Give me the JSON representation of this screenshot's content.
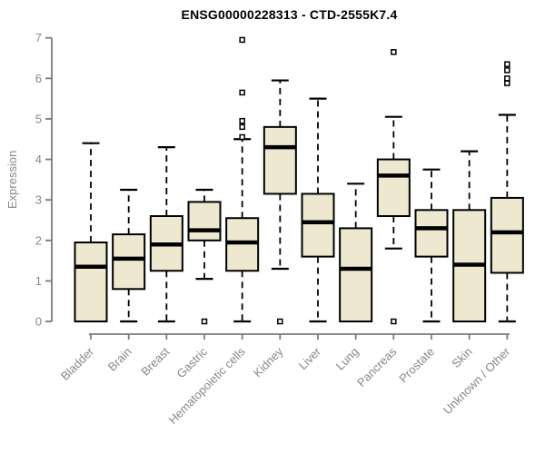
{
  "chart_data": {
    "type": "boxplot",
    "title": "ENSG00000228313 - CTD-2555K7.4",
    "xlabel": "",
    "ylabel": "Expression",
    "ylim": [
      0,
      7
    ],
    "yticks": [
      0,
      1,
      2,
      3,
      4,
      5,
      6,
      7
    ],
    "grid": false,
    "legend": "none",
    "categories": [
      "Bladder",
      "Brain",
      "Breast",
      "Gastric",
      "Hematopoietic cells",
      "Kidney",
      "Liver",
      "Lung",
      "Pancreas",
      "Prostate",
      "Skin",
      "Unknown / Other"
    ],
    "series": [
      {
        "name": "Bladder",
        "whisker_low": 0,
        "q1": 0,
        "median": 1.35,
        "q3": 1.95,
        "whisker_high": 4.4,
        "outliers": []
      },
      {
        "name": "Brain",
        "whisker_low": 0,
        "q1": 0.8,
        "median": 1.55,
        "q3": 2.15,
        "whisker_high": 3.25,
        "outliers": []
      },
      {
        "name": "Breast",
        "whisker_low": 0,
        "q1": 1.25,
        "median": 1.9,
        "q3": 2.6,
        "whisker_high": 4.3,
        "outliers": []
      },
      {
        "name": "Gastric",
        "whisker_low": 1.05,
        "q1": 2.0,
        "median": 2.25,
        "q3": 2.95,
        "whisker_high": 3.25,
        "outliers": [
          0
        ]
      },
      {
        "name": "Hematopoietic cells",
        "whisker_low": 0,
        "q1": 1.25,
        "median": 1.95,
        "q3": 2.55,
        "whisker_high": 4.5,
        "outliers": [
          4.55,
          4.8,
          4.95,
          5.65,
          6.95
        ]
      },
      {
        "name": "Kidney",
        "whisker_low": 1.3,
        "q1": 3.15,
        "median": 4.3,
        "q3": 4.8,
        "whisker_high": 5.95,
        "outliers": [
          0
        ]
      },
      {
        "name": "Liver",
        "whisker_low": 0,
        "q1": 1.6,
        "median": 2.45,
        "q3": 3.15,
        "whisker_high": 5.5,
        "outliers": []
      },
      {
        "name": "Lung",
        "whisker_low": 0,
        "q1": 0,
        "median": 1.3,
        "q3": 2.3,
        "whisker_high": 3.4,
        "outliers": []
      },
      {
        "name": "Pancreas",
        "whisker_low": 1.8,
        "q1": 2.6,
        "median": 3.6,
        "q3": 4.0,
        "whisker_high": 5.05,
        "outliers": [
          6.65,
          0
        ]
      },
      {
        "name": "Prostate",
        "whisker_low": 0,
        "q1": 1.6,
        "median": 2.3,
        "q3": 2.75,
        "whisker_high": 3.75,
        "outliers": []
      },
      {
        "name": "Skin",
        "whisker_low": 0,
        "q1": 0,
        "median": 1.4,
        "q3": 2.75,
        "whisker_high": 4.2,
        "outliers": []
      },
      {
        "name": "Unknown / Other",
        "whisker_low": 0,
        "q1": 1.2,
        "median": 2.2,
        "q3": 3.05,
        "whisker_high": 5.1,
        "outliers": [
          5.88,
          6.0,
          6.2,
          6.35
        ]
      }
    ],
    "colors": {
      "box_fill": "#EDE8CF",
      "box_stroke": "#000000",
      "median": "#000000",
      "whisker": "#000000",
      "outlier_stroke": "#000000",
      "outlier_fill": "#ffffff",
      "axis_line": "#7a7a7a",
      "axis_text": "#878787",
      "title": "#000000",
      "background": "#ffffff"
    }
  }
}
